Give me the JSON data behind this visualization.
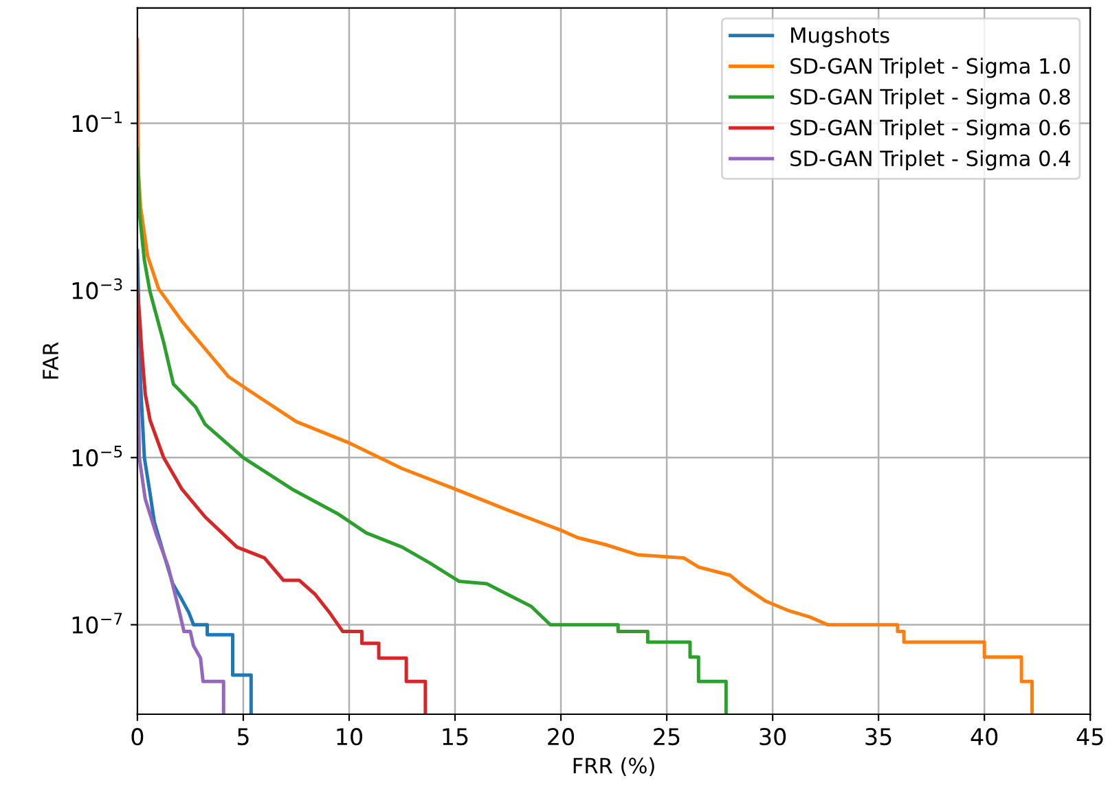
{
  "chart_data": {
    "type": "line",
    "xlabel": "FRR (%)",
    "ylabel": "FAR",
    "xlim": [
      0,
      45
    ],
    "xticks": [
      0,
      5,
      10,
      15,
      20,
      25,
      30,
      35,
      40,
      45
    ],
    "ylim": [
      8.5e-09,
      2.4
    ],
    "log": "y",
    "yticks": [
      {
        "value": 0.1,
        "label": "10$^{−1}$"
      },
      {
        "value": 0.001,
        "label": "10$^{−3}$"
      },
      {
        "value": 1e-05,
        "label": "10$^{−5}$"
      },
      {
        "value": 1e-07,
        "label": "10$^{−7}$"
      }
    ],
    "grid": true,
    "legend": "top right",
    "line_style": "solid",
    "series": [
      {
        "name": "Mugshots",
        "color": "#1f77b4",
        "x": [
          0,
          0.15,
          0.33,
          0.6,
          0.8,
          1.24,
          1.67,
          2.1,
          2.43,
          2.65,
          3.3,
          3.3,
          4.5,
          4.5,
          5.37,
          5.37
        ],
        "values": [
          0.003,
          7.6e-05,
          1e-05,
          3.7e-06,
          1.7e-06,
          7.1e-07,
          3.1e-07,
          2e-07,
          1.4e-07,
          1e-07,
          1e-07,
          7.6e-08,
          7.6e-08,
          2.5e-08,
          2.5e-08,
          8.5e-09
        ]
      },
      {
        "name": "SD-GAN Triplet - Sigma 1.0",
        "color": "#ff7f0e",
        "x": [
          0,
          0.05,
          0.15,
          0.48,
          1.0,
          2.1,
          3.2,
          4.3,
          5.6,
          7.5,
          10,
          12.5,
          15,
          17.5,
          20,
          20.8,
          22.1,
          23.6,
          25.8,
          26.5,
          28.0,
          28.6,
          29.7,
          30.8,
          31.75,
          32.6,
          35.9,
          35.9,
          36.2,
          36.2,
          40.0,
          40.0,
          41.75,
          41.75,
          42.25,
          42.25
        ],
        "values": [
          1,
          0.026,
          0.01,
          0.0026,
          0.00105,
          0.00043,
          0.0002,
          9.3e-05,
          5.6e-05,
          2.7e-05,
          1.5e-05,
          7.4e-06,
          4.2e-06,
          2.35e-06,
          1.35e-06,
          1.1e-06,
          9.1e-07,
          6.9e-07,
          6.3e-07,
          4.9e-07,
          3.9e-07,
          2.9e-07,
          1.9e-07,
          1.46e-07,
          1.24e-07,
          1e-07,
          1e-07,
          8.3e-08,
          8.3e-08,
          6.2e-08,
          6.2e-08,
          4.1e-08,
          4.1e-08,
          2.1e-08,
          2.1e-08,
          8.5e-09
        ]
      },
      {
        "name": "SD-GAN Triplet - Sigma 0.8",
        "color": "#2ca02c",
        "x": [
          0,
          0.1,
          0.33,
          0.59,
          1.24,
          1.7,
          2.76,
          3.2,
          5.0,
          7.3,
          9.5,
          10.8,
          12.5,
          13.8,
          15.2,
          16.5,
          17.8,
          18.6,
          19.5,
          22.7,
          22.7,
          24.1,
          24.1,
          26.1,
          26.1,
          26.5,
          26.5,
          27.8,
          27.8
        ],
        "values": [
          0.05,
          0.0083,
          0.0023,
          0.00098,
          0.00024,
          7.6e-05,
          4e-05,
          2.5e-05,
          1e-05,
          4.2e-06,
          2.1e-06,
          1.26e-06,
          8.5e-07,
          5.5e-07,
          3.3e-07,
          3.1e-07,
          2.1e-07,
          1.66e-07,
          1e-07,
          1e-07,
          8.3e-08,
          8.3e-08,
          6.2e-08,
          6.2e-08,
          4.1e-08,
          4.1e-08,
          2.1e-08,
          2.1e-08,
          8.5e-09
        ]
      },
      {
        "name": "SD-GAN Triplet - Sigma 0.6",
        "color": "#d62728",
        "x": [
          0,
          0.1,
          0.2,
          0.37,
          0.6,
          1.24,
          2.1,
          3.2,
          4.7,
          6.0,
          6.9,
          7.65,
          8.4,
          9.1,
          9.7,
          10.6,
          10.6,
          11.4,
          11.4,
          12.7,
          12.7,
          13.6,
          13.6
        ],
        "values": [
          0.001,
          0.0005,
          0.0002,
          5.8e-05,
          2.8e-05,
          1e-05,
          4.2e-06,
          1.95e-06,
          8.5e-07,
          6.3e-07,
          3.4e-07,
          3.4e-07,
          2.3e-07,
          1.37e-07,
          8.3e-08,
          8.3e-08,
          6e-08,
          6e-08,
          4e-08,
          4e-08,
          2.1e-08,
          2.1e-08,
          8.5e-09
        ]
      },
      {
        "name": "SD-GAN Triplet - Sigma 0.4",
        "color": "#9467bd",
        "x": [
          0,
          0.04,
          0.09,
          0.37,
          0.9,
          1.46,
          1.78,
          2.0,
          2.2,
          2.5,
          2.65,
          2.98,
          3.1,
          4.07,
          4.07
        ],
        "values": [
          0.0002,
          7.6e-05,
          1e-05,
          3.2e-06,
          1.2e-06,
          4.9e-07,
          2.3e-07,
          1.37e-07,
          8.3e-08,
          8.3e-08,
          5.6e-08,
          4e-08,
          2.1e-08,
          2.1e-08,
          8.5e-09
        ]
      }
    ]
  }
}
